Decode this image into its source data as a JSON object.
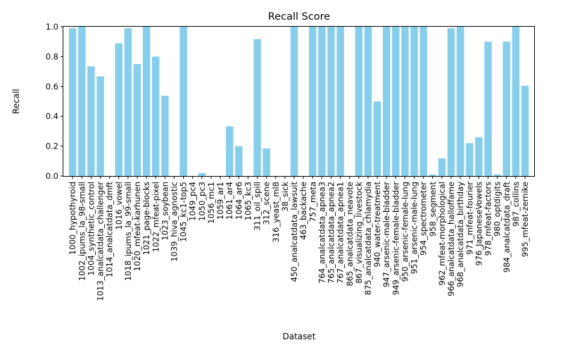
{
  "chart_data": {
    "type": "bar",
    "title": "Recall Score",
    "xlabel": "Dataset",
    "ylabel": "Recall",
    "ylim": [
      0,
      1.0
    ],
    "yticks": [
      "0.0",
      "0.2",
      "0.4",
      "0.6",
      "0.8",
      "1.0"
    ],
    "grid": false,
    "bar_color": "#87CEEB",
    "categories": [
      "1000_hypothyroid",
      "1002_ipums_la_98-small",
      "1004_synthetic_control",
      "1013_analcatdata_challenger",
      "1014_analcatdata_dmft",
      "1016_vowel",
      "1018_ipums_la_99-small",
      "1020_mfeat-karhunen",
      "1021_page-blocks",
      "1022_mfeat-pixel",
      "1023_soybean",
      "1039_hiva_agnostic",
      "1045_kc1-top5",
      "1049_pc4",
      "1050_pc3",
      "1056_mc1",
      "1059_ar1",
      "1061_ar4",
      "1064_ar6",
      "1065_kc3",
      "311_oil_spill",
      "312_scene",
      "316_yeast_ml8",
      "38_sick",
      "450_analcatdata_lawsuit",
      "463_backache",
      "757_meta",
      "764_analcatdata_apnea3",
      "765_analcatdata_apnea2",
      "767_analcatdata_apnea1",
      "865_analcatdata_neavote",
      "867_visualizing_livestock",
      "875_analcatdata_chlamydia",
      "940_water-treatment",
      "947_arsenic-male-bladder",
      "949_arsenic-female-bladder",
      "950_arsenic-female-lung",
      "951_arsenic-male-lung",
      "954_spectrometer",
      "958_segment",
      "962_mfeat-morphological",
      "966_analcatdata_halloffame",
      "968_analcatdata_birthday",
      "971_mfeat-fourier",
      "976_JapaneseVowels",
      "978_mfeat-factors",
      "980_optdigits",
      "984_analcatdata_draft",
      "987_collins",
      "995_mfeat-zernike"
    ],
    "values": [
      0.99,
      1.0,
      0.735,
      0.667,
      0.0,
      0.889,
      0.99,
      0.75,
      1.0,
      0.8,
      0.538,
      0.0,
      1.0,
      0.0,
      0.02,
      0.0,
      0.0,
      0.333,
      0.2,
      0.0,
      0.917,
      0.185,
      0.0,
      0.0,
      1.0,
      0.0,
      1.0,
      1.0,
      1.0,
      1.0,
      0.0,
      1.0,
      1.0,
      0.5,
      1.0,
      1.0,
      1.0,
      1.0,
      1.0,
      0.01,
      0.118,
      0.99,
      1.0,
      0.22,
      0.26,
      0.9,
      0.01,
      0.9,
      1.0,
      0.605
    ]
  }
}
